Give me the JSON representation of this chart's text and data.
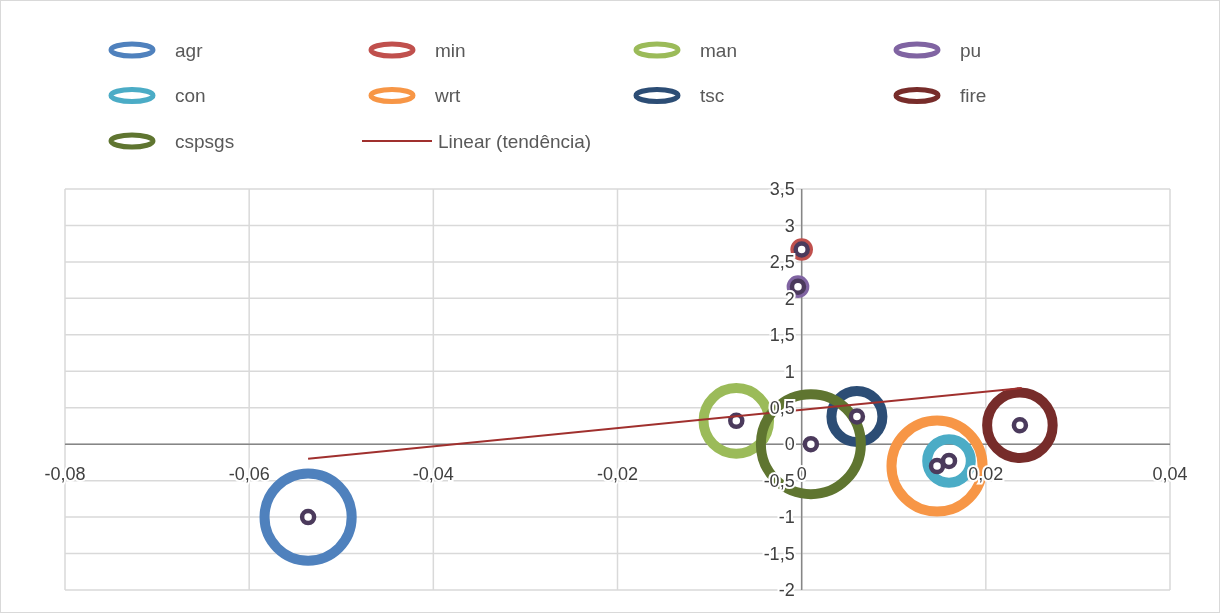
{
  "chart_data": {
    "type": "bubble",
    "xlim": [
      -0.08,
      0.04
    ],
    "xticks": [
      {
        "value": -0.08,
        "label": "-0,08"
      },
      {
        "value": -0.06,
        "label": "-0,06"
      },
      {
        "value": -0.04,
        "label": "-0,04"
      },
      {
        "value": -0.02,
        "label": "-0,02"
      },
      0,
      {
        "value": 0.02,
        "label": "0,02"
      },
      {
        "value": 0.04,
        "label": "0,04"
      }
    ],
    "ylim": [
      -2,
      3.5
    ],
    "yticks": [
      -2,
      {
        "value": -1.5,
        "label": "-1,5"
      },
      -1,
      {
        "value": -0.5,
        "label": "-0,5"
      },
      0,
      {
        "value": 0.5,
        "label": "0,5"
      },
      1,
      {
        "value": 1.5,
        "label": "1,5"
      },
      2,
      {
        "value": 2.5,
        "label": "2,5"
      },
      3,
      {
        "value": 3.5,
        "label": "3,5"
      }
    ],
    "grid": true,
    "legend": "top",
    "series": [
      {
        "name": "agr",
        "color": "#4f81bd",
        "x": [
          -0.0536
        ],
        "values": [
          -1.0
        ],
        "sizes": [
          0.76
        ]
      },
      {
        "name": "min",
        "color": "#c0504d",
        "x": [
          0.0
        ],
        "values": [
          2.67
        ],
        "sizes": [
          0.033
        ]
      },
      {
        "name": "man",
        "color": "#9bbb59",
        "x": [
          -0.0071
        ],
        "values": [
          0.32
        ],
        "sizes": [
          0.43
        ]
      },
      {
        "name": "pu",
        "color": "#8064a2",
        "x": [
          -0.0004
        ],
        "values": [
          2.16
        ],
        "sizes": [
          0.033
        ]
      },
      {
        "name": "con",
        "color": "#4bacc6",
        "x": [
          0.016
        ],
        "values": [
          -0.23
        ],
        "sizes": [
          0.19
        ]
      },
      {
        "name": "wrt",
        "color": "#f79646",
        "x": [
          0.0147
        ],
        "values": [
          -0.3
        ],
        "sizes": [
          0.83
        ]
      },
      {
        "name": "tsc",
        "color": "#2c4d75",
        "x": [
          0.006
        ],
        "values": [
          0.38
        ],
        "sizes": [
          0.26
        ]
      },
      {
        "name": "fire",
        "color": "#772c2a",
        "x": [
          0.0237
        ],
        "values": [
          0.26
        ],
        "sizes": [
          0.43
        ]
      },
      {
        "name": "cspsgs",
        "color": "#5f7530",
        "x": [
          0.001
        ],
        "values": [
          0.0
        ],
        "sizes": [
          1
        ]
      },
      {
        "type": "scatter",
        "color": "#4b3a5c",
        "marker": "circle",
        "x": [
          -0.0536,
          0.0,
          -0.0071,
          -0.0004,
          0.016,
          0.0147,
          0.006,
          0.0237,
          0.001
        ],
        "values": [
          -1.0,
          2.67,
          0.32,
          2.16,
          -0.23,
          -0.3,
          0.38,
          0.26,
          0.0
        ]
      },
      {
        "type": "line",
        "name": "Linear (tendência)",
        "color": "#a0302e",
        "x": [
          -0.0536,
          0.0239
        ],
        "values": [
          -0.2,
          0.77
        ]
      }
    ]
  }
}
